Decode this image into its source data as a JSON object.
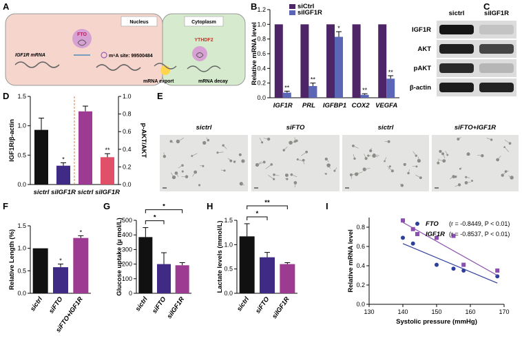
{
  "panel_labels": {
    "a": "A",
    "b": "B",
    "c": "C",
    "d": "D",
    "e": "E",
    "f": "F",
    "g": "G",
    "h": "H",
    "i": "I"
  },
  "diagram_a": {
    "nucleus": "Nucleus",
    "cytoplasm": "Cytoplasm",
    "fto": "FTO",
    "ythdf2": "YTHDF2",
    "igf1r_mrna": "IGF1R mRNA",
    "m6a_site": "m⁶A site: 99500484",
    "export": "mRNA export",
    "decay": "mRNA decay",
    "colors": {
      "nucleus": "#f6d6cc",
      "cytoplasm": "#d6ebcd",
      "fto": "#d7a1d4"
    }
  },
  "western_c": {
    "col_labels": [
      "sictrl",
      "siIGF1R"
    ],
    "row_labels": [
      "IGF1R",
      "AKT",
      "pAKT",
      "β-actin"
    ],
    "band_intensity": [
      [
        0.95,
        0.12
      ],
      [
        0.9,
        0.72
      ],
      [
        0.85,
        0.18
      ],
      [
        0.92,
        0.88
      ]
    ]
  },
  "images_e": {
    "labels": [
      "sictrl",
      "siFTO",
      "sictrl",
      "siFTO+IGF1R"
    ]
  },
  "chart_data": [
    {
      "id": "B",
      "type": "bar",
      "ylabel": "Relative mRNA level",
      "ylim": [
        0,
        1.2
      ],
      "yticks": [
        "0.0",
        "0.2",
        "0.4",
        "0.6",
        "0.8",
        "1.0",
        "1.2"
      ],
      "categories": [
        "IGF1R",
        "PRL",
        "IGFBP1",
        "COX2",
        "VEGFA"
      ],
      "series": [
        {
          "name": "siCtrl",
          "color": "#4e2567",
          "values": [
            1,
            1,
            1,
            1,
            1
          ]
        },
        {
          "name": "siIGF1R",
          "color": "#5b67b6",
          "values": [
            0.07,
            0.16,
            0.83,
            0.04,
            0.26
          ],
          "errors": [
            0.02,
            0.04,
            0.07,
            0.015,
            0.04
          ],
          "sig": [
            "**",
            "**",
            "*",
            "**",
            "**"
          ]
        }
      ]
    },
    {
      "id": "D",
      "type": "bar",
      "ylabel": "IGF1R/β-actin",
      "ylabel_right": "p-AKT/AKT",
      "ylim": [
        0,
        1.5
      ],
      "yticks": [
        "0.0",
        "0.5",
        "1.0",
        "1.5"
      ],
      "ylim_right": [
        0,
        1.0
      ],
      "yticks_right": [
        "0.0",
        "0.2",
        "0.4",
        "0.6",
        "0.8",
        "1.0"
      ],
      "categories": [
        "sictrl",
        "siIGF1R",
        "sictrl",
        "siIGF1R"
      ],
      "values": [
        0.93,
        0.32,
        0.83,
        0.31
      ],
      "errors": [
        0.2,
        0.05,
        0.06,
        0.04
      ],
      "axis": [
        "left",
        "left",
        "right",
        "right"
      ],
      "colors": [
        "#111111",
        "#3f2a86",
        "#9d3a92",
        "#e05069"
      ],
      "sig": [
        "",
        "*",
        "",
        "**"
      ]
    },
    {
      "id": "F",
      "type": "bar",
      "ylabel": "Relative Length (%)",
      "ylim": [
        0,
        1.5
      ],
      "yticks": [
        "0.0",
        "0.5",
        "1.0",
        "1.5"
      ],
      "categories": [
        "sictrl",
        "siFTO",
        "siFTO+IGF1R"
      ],
      "values": [
        1.0,
        0.58,
        1.23
      ],
      "errors": [
        0,
        0.07,
        0.05
      ],
      "colors": [
        "#111111",
        "#3f2a86",
        "#9d3a92"
      ],
      "sig": [
        "",
        "*",
        "*"
      ]
    },
    {
      "id": "G",
      "type": "bar",
      "ylabel": "Glucose uptake (μ mol/L)",
      "ylim": [
        0,
        500
      ],
      "yticks": [
        "0",
        "100",
        "200",
        "300",
        "400",
        "500"
      ],
      "categories": [
        "sictrl",
        "siFTO",
        "siIGF1R"
      ],
      "values": [
        385,
        200,
        192
      ],
      "errors": [
        65,
        78,
        18
      ],
      "colors": [
        "#111111",
        "#3f2a86",
        "#9d3a92"
      ],
      "sig_labels": [
        "*",
        "*"
      ]
    },
    {
      "id": "H",
      "type": "bar",
      "ylabel": "Lactate levels (mmol/L)",
      "ylim": [
        0,
        1.5
      ],
      "yticks": [
        "0.0",
        "0.5",
        "1.0",
        "1.5"
      ],
      "categories": [
        "sictrl",
        "siFTO",
        "siIGF1R"
      ],
      "values": [
        1.17,
        0.74,
        0.6
      ],
      "errors": [
        0.26,
        0.1,
        0.03
      ],
      "colors": [
        "#111111",
        "#3f2a86",
        "#9d3a92"
      ],
      "sig_labels": [
        "*",
        "**"
      ]
    },
    {
      "id": "I",
      "type": "scatter",
      "xlabel": "Systolic pressure (mmHg)",
      "ylabel": "Relative mRNA level",
      "xlim": [
        130,
        170
      ],
      "ylim": [
        0,
        0.9
      ],
      "xticks": [
        "130",
        "140",
        "150",
        "160",
        "170"
      ],
      "yticks": [
        "0.0",
        "0.2",
        "0.4",
        "0.6",
        "0.8"
      ],
      "series": [
        {
          "name": "FTO",
          "stat": "(r = -0.8449, P < 0.01)",
          "color": "#2d3f9b",
          "marker": "circle",
          "points": [
            [
              140,
              0.69
            ],
            [
              143,
              0.63
            ],
            [
              150,
              0.41
            ],
            [
              155,
              0.37
            ],
            [
              158,
              0.35
            ],
            [
              168,
              0.29
            ]
          ],
          "fit": [
            [
              140,
              0.63
            ],
            [
              168,
              0.22
            ]
          ]
        },
        {
          "name": "IGF1R",
          "stat": "(r = -0.8537, P < 0.01)",
          "color": "#8a4fb0",
          "marker": "square",
          "points": [
            [
              140,
              0.87
            ],
            [
              143,
              0.78
            ],
            [
              150,
              0.69
            ],
            [
              155,
              0.71
            ],
            [
              158,
              0.41
            ],
            [
              168,
              0.35
            ]
          ],
          "fit": [
            [
              140,
              0.85
            ],
            [
              168,
              0.3
            ]
          ]
        }
      ]
    }
  ]
}
